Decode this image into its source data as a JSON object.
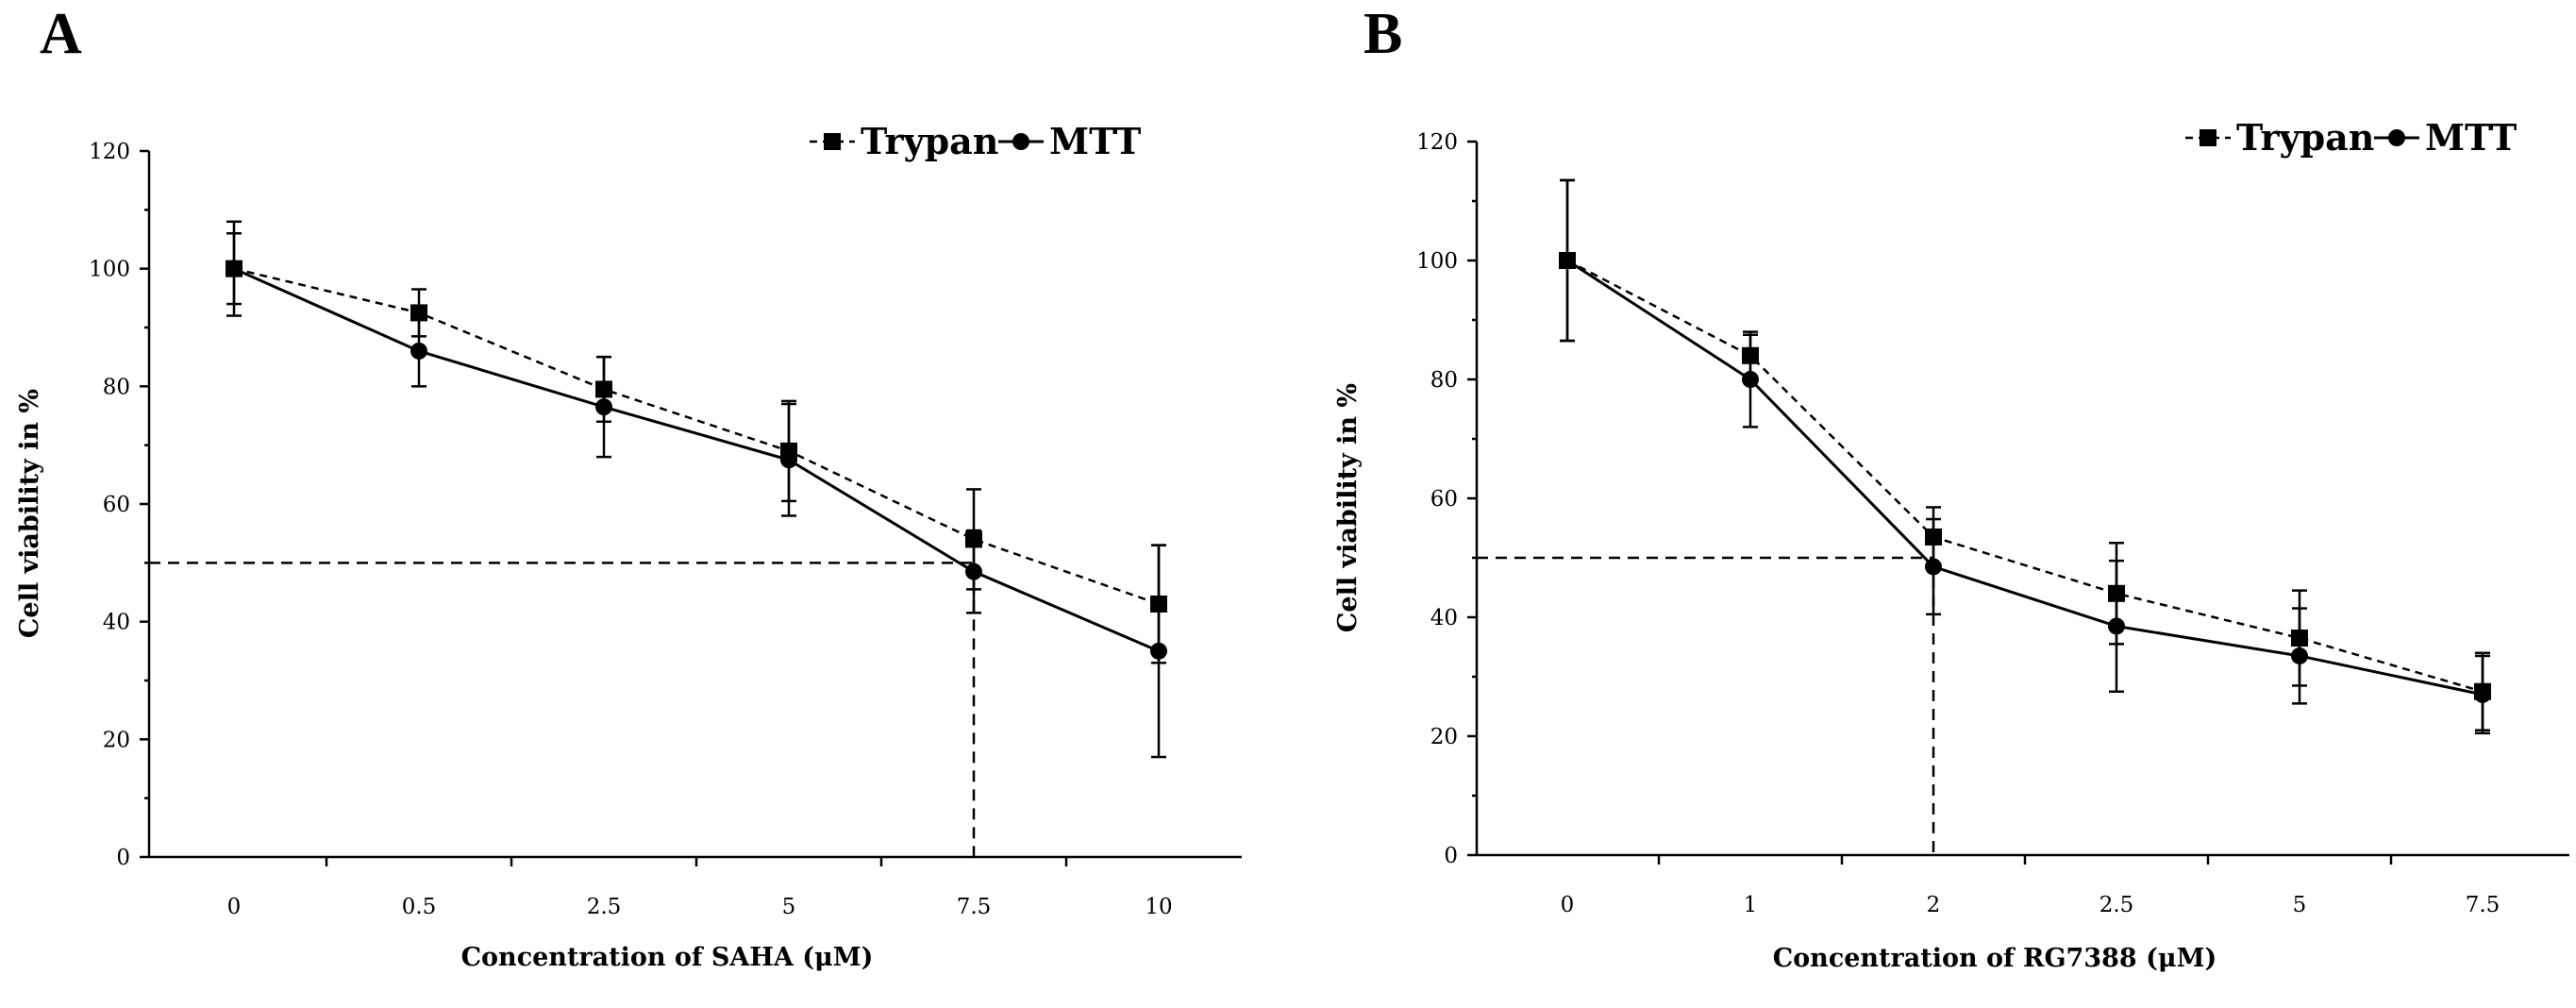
{
  "chart_data": [
    {
      "panel_label": "A",
      "type": "line",
      "title": "",
      "xlabel": "Concentration of SAHA (μM)",
      "ylabel": "Cell viability in %",
      "categories": [
        "0",
        "0.5",
        "2.5",
        "5",
        "7.5",
        "10"
      ],
      "ylim": [
        0,
        120
      ],
      "yticks": [
        0,
        20,
        40,
        60,
        80,
        100,
        120
      ],
      "legend_position": "top-right",
      "series": [
        {
          "name": "Trypan",
          "style": "dashed",
          "marker": "square",
          "values": [
            100,
            92.5,
            79.5,
            69,
            54,
            43
          ],
          "errors": [
            8,
            4,
            5.5,
            8.5,
            8.5,
            10
          ]
        },
        {
          "name": "MTT",
          "style": "solid",
          "marker": "circle",
          "values": [
            100,
            86,
            76.5,
            67.5,
            48.5,
            35
          ],
          "errors": [
            6,
            6,
            8.5,
            9.5,
            7,
            18
          ]
        }
      ],
      "reference": {
        "y": 50,
        "x_category_index": 4
      }
    },
    {
      "panel_label": "B",
      "type": "line",
      "title": "",
      "xlabel": "Concentration of RG7388 (μM)",
      "ylabel": "Cell viability in %",
      "categories": [
        "0",
        "1",
        "2",
        "2.5",
        "5",
        "7.5"
      ],
      "ylim": [
        0,
        120
      ],
      "yticks": [
        0,
        20,
        40,
        60,
        80,
        100,
        120
      ],
      "legend_position": "top-right",
      "series": [
        {
          "name": "Trypan",
          "style": "dashed",
          "marker": "square",
          "values": [
            100,
            84,
            53.5,
            44,
            36.5,
            27.5
          ],
          "errors": [
            13.5,
            3.5,
            5,
            8.5,
            8,
            6.5
          ]
        },
        {
          "name": "MTT",
          "style": "solid",
          "marker": "circle",
          "values": [
            100,
            80,
            48.5,
            38.5,
            33.5,
            27
          ],
          "errors": [
            13.5,
            8,
            8,
            11,
            8,
            6.5
          ]
        }
      ],
      "reference": {
        "y": 50,
        "x_category_index": 2
      }
    }
  ]
}
